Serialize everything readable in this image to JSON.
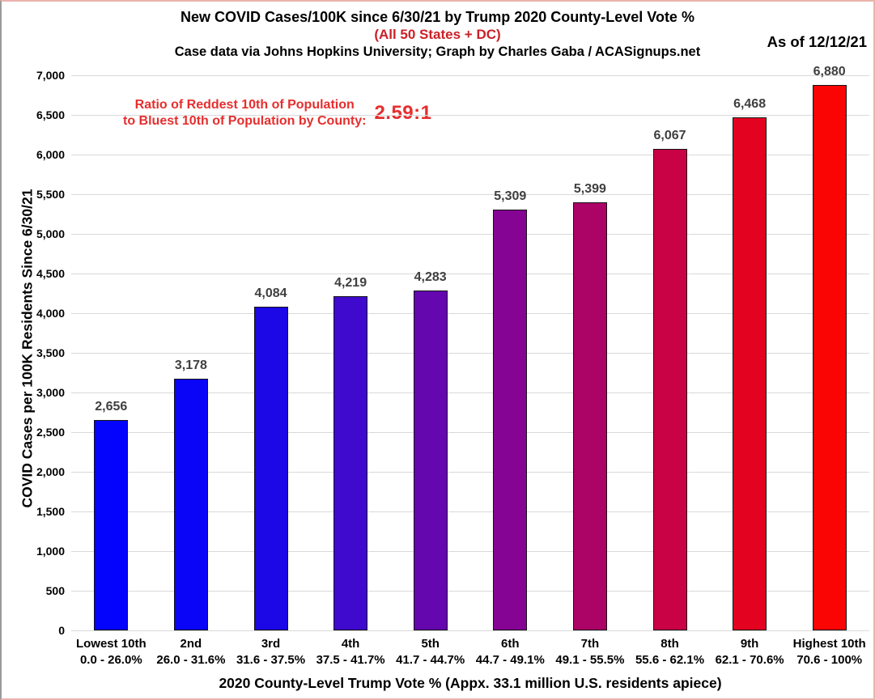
{
  "chart_data": {
    "type": "bar",
    "title": "New COVID Cases/100K since 6/30/21 by Trump 2020 County-Level Vote %",
    "subtitle": "(All 50 States + DC)",
    "credit": "Case data via Johns Hopkins University; Graph by Charles Gaba / ACASignups.net",
    "as_of": "As of 12/12/21",
    "annotation": {
      "line1": "Ratio of Reddest 10th of Population",
      "line2": "to Bluest 10th of Population by County:",
      "ratio": "2.59:1"
    },
    "xlabel": "2020 County-Level Trump Vote % (Appx. 33.1 million U.S. residents apiece)",
    "ylabel": "COVID Cases per 100K Residents Since 6/30/21",
    "categories": [
      {
        "name": "Lowest 10th",
        "range": "0.0 - 26.0%"
      },
      {
        "name": "2nd",
        "range": "26.0 - 31.6%"
      },
      {
        "name": "3rd",
        "range": "31.6 - 37.5%"
      },
      {
        "name": "4th",
        "range": "37.5 - 41.7%"
      },
      {
        "name": "5th",
        "range": "41.7 - 44.7%"
      },
      {
        "name": "6th",
        "range": "44.7 - 49.1%"
      },
      {
        "name": "7th",
        "range": "49.1 - 55.5%"
      },
      {
        "name": "8th",
        "range": "55.6 - 62.1%"
      },
      {
        "name": "9th",
        "range": "62.1 - 70.6%"
      },
      {
        "name": "Highest 10th",
        "range": "70.6 - 100%"
      }
    ],
    "values": [
      2656,
      3178,
      4084,
      4219,
      4283,
      5309,
      5399,
      6067,
      6468,
      6880
    ],
    "value_labels": [
      "2,656",
      "3,178",
      "4,084",
      "4,219",
      "4,283",
      "5,309",
      "5,399",
      "6,067",
      "6,468",
      "6,880"
    ],
    "bar_colors": [
      "#0404FC",
      "#0A05F6",
      "#1C07E6",
      "#4009CE",
      "#6407AE",
      "#850494",
      "#AC0366",
      "#C90245",
      "#E30220",
      "#FA0404"
    ],
    "ylim": [
      0,
      7000
    ],
    "ytick_step": 500,
    "ytick_labels": [
      "0",
      "500",
      "1,000",
      "1,500",
      "2,000",
      "2,500",
      "3,000",
      "3,500",
      "4,000",
      "4,500",
      "5,000",
      "5,500",
      "6,000",
      "6,500",
      "7,000"
    ],
    "grid": true,
    "legend": false,
    "style_colors": {
      "subtitle_red": "#cb2027",
      "annotation_red": "#e62e2e",
      "value_label_gray": "#3f3f3f",
      "gridline_gray": "#d9d9d9",
      "bar_outline": "#141414"
    }
  }
}
